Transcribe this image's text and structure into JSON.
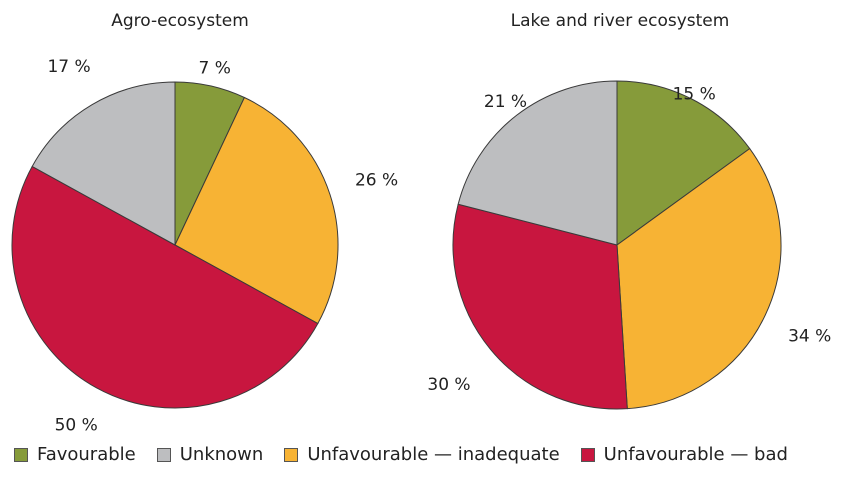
{
  "chart_data": [
    {
      "type": "pie",
      "title": "Agro-ecosystem",
      "slices": [
        {
          "category": "Favourable",
          "value": 7,
          "label": "7 %"
        },
        {
          "category": "Unfavourable — inadequate",
          "value": 26,
          "label": "26 %"
        },
        {
          "category": "Unfavourable — bad",
          "value": 50,
          "label": "50 %"
        },
        {
          "category": "Unknown",
          "value": 17,
          "label": "17 %"
        }
      ]
    },
    {
      "type": "pie",
      "title": "Lake and river ecosystem",
      "slices": [
        {
          "category": "Favourable",
          "value": 15,
          "label": "15 %"
        },
        {
          "category": "Unfavourable — inadequate",
          "value": 34,
          "label": "34 %"
        },
        {
          "category": "Unfavourable — bad",
          "value": 30,
          "label": "30 %"
        },
        {
          "category": "Unknown",
          "value": 21,
          "label": "21 %"
        }
      ]
    }
  ],
  "legend": [
    {
      "label": "Favourable",
      "color": "#869b3a"
    },
    {
      "label": "Unknown",
      "color": "#bdbec0"
    },
    {
      "label": "Unfavourable — inadequate",
      "color": "#f7b334"
    },
    {
      "label": "Unfavourable — bad",
      "color": "#c8163f"
    }
  ],
  "colors": {
    "Favourable": "#869b3a",
    "Unknown": "#bdbec0",
    "Unfavourable — inadequate": "#f7b334",
    "Unfavourable — bad": "#c8163f"
  }
}
